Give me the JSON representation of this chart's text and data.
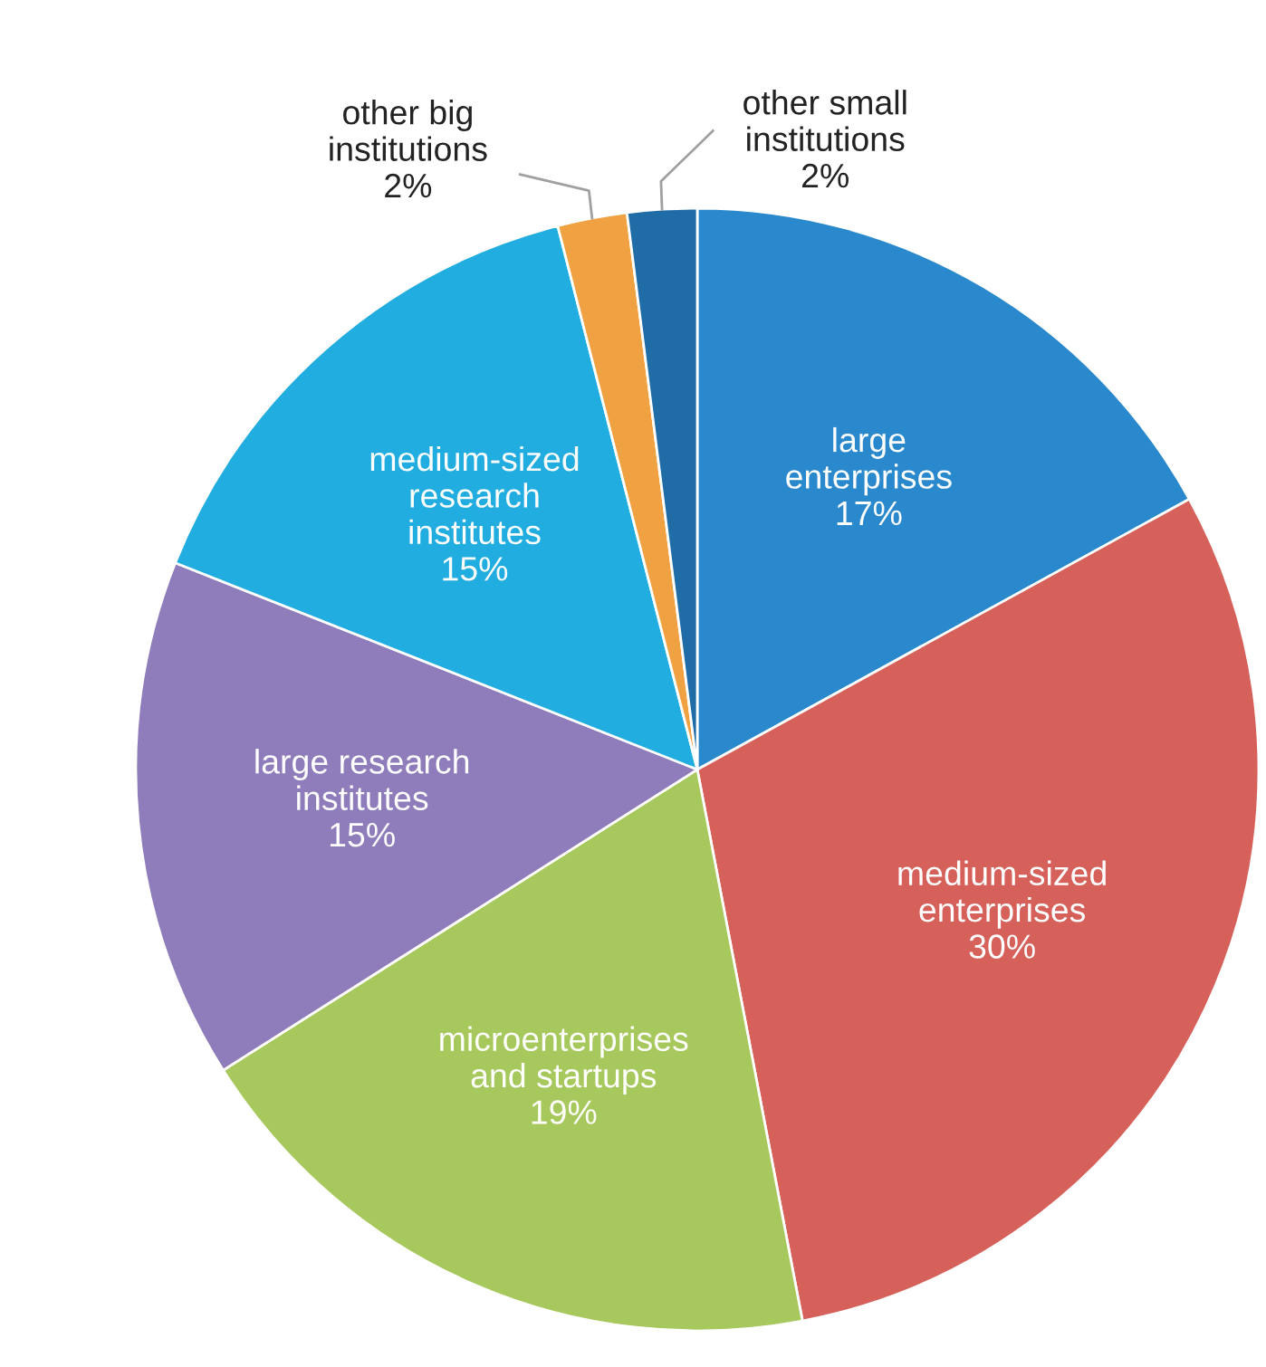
{
  "chart_data": {
    "type": "pie",
    "categories": [
      "large\nenterprises",
      "medium-sized\nenterprises",
      "microenterprises\nand startups",
      "large research\ninstitutes",
      "medium-sized\nresearch\ninstitutes",
      "other big\ninstitutions",
      "other small\ninstitutions"
    ],
    "values": [
      17,
      30,
      19,
      15,
      15,
      2,
      2
    ],
    "value_labels": [
      "17%",
      "30%",
      "19%",
      "15%",
      "15%",
      "2%",
      "2%"
    ],
    "colors": [
      "#2a88cc",
      "#d6615b",
      "#a7c85c",
      "#8f7cba",
      "#22ade0",
      "#f0a141",
      "#1f6ca6"
    ]
  }
}
